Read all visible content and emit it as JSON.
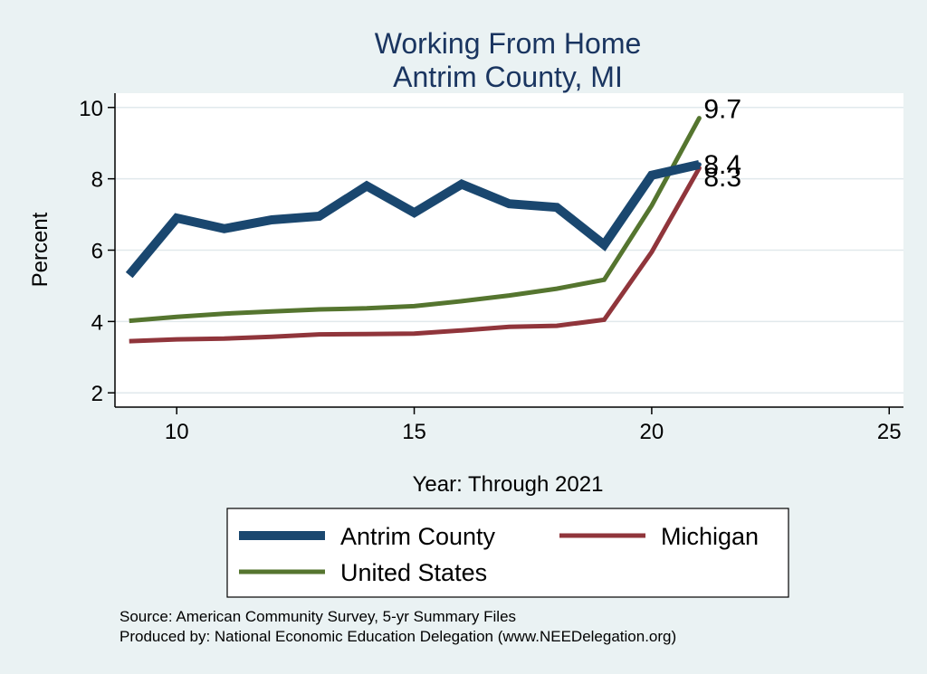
{
  "chart_data": {
    "type": "line",
    "title": [
      "Working From Home",
      "Antrim County, MI"
    ],
    "xlabel": "Year: Through 2021",
    "ylabel": "Percent",
    "xlim": [
      8.7,
      25.3
    ],
    "ylim": [
      1.6,
      10.4
    ],
    "xticks": [
      10,
      15,
      20,
      25
    ],
    "yticks": [
      2,
      4,
      6,
      8,
      10
    ],
    "grid": "horizontal",
    "legend_position": "bottom",
    "x": [
      9,
      10,
      11,
      12,
      13,
      14,
      15,
      16,
      17,
      18,
      19,
      20,
      21
    ],
    "series": [
      {
        "name": "Antrim County",
        "color": "#1a476f",
        "values": [
          5.3,
          6.9,
          6.6,
          6.85,
          6.95,
          7.8,
          7.05,
          7.85,
          7.3,
          7.2,
          6.15,
          8.1,
          8.4
        ],
        "end_label": "8.4"
      },
      {
        "name": "Michigan",
        "color": "#90353b",
        "values": [
          3.45,
          3.5,
          3.52,
          3.57,
          3.64,
          3.65,
          3.66,
          3.75,
          3.85,
          3.88,
          4.05,
          5.95,
          8.3
        ],
        "end_label": "8.3"
      },
      {
        "name": "United States",
        "color": "#55752f",
        "values": [
          4.02,
          4.13,
          4.22,
          4.28,
          4.34,
          4.37,
          4.43,
          4.57,
          4.73,
          4.92,
          5.17,
          7.25,
          9.7
        ],
        "end_label": "9.7"
      }
    ]
  },
  "source": {
    "line1": "Source: American Community Survey, 5-yr Summary Files",
    "line2": "Produced by: National Economic Education Delegation (www.NEEDelegation.org)"
  }
}
